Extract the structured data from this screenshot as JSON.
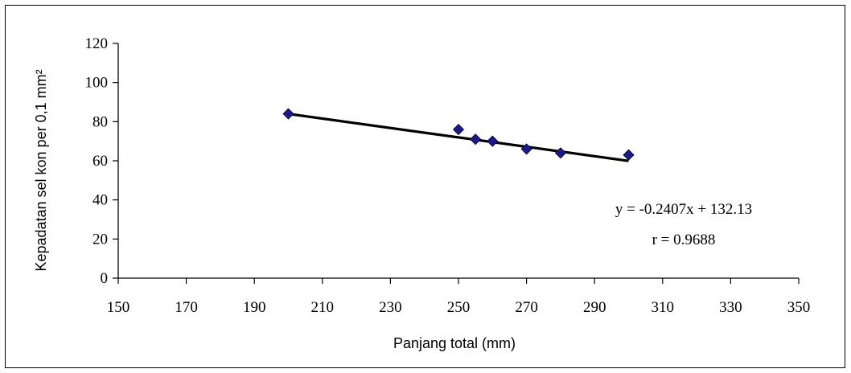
{
  "chart_data": {
    "type": "scatter",
    "title": "",
    "xlabel": "Panjang total (mm)",
    "ylabel": "Kepadatan  sel kon per 0,1 mm²",
    "xlim": [
      150,
      350
    ],
    "ylim": [
      0,
      120
    ],
    "x_ticks": [
      150,
      170,
      190,
      210,
      230,
      250,
      270,
      290,
      310,
      330,
      350
    ],
    "y_ticks": [
      0,
      20,
      40,
      60,
      80,
      100,
      120
    ],
    "grid": false,
    "marker_color": "#1a1a8c",
    "line_color": "#000000",
    "points": [
      {
        "x": 200,
        "y": 84
      },
      {
        "x": 250,
        "y": 76
      },
      {
        "x": 255,
        "y": 71
      },
      {
        "x": 260,
        "y": 70
      },
      {
        "x": 270,
        "y": 66
      },
      {
        "x": 280,
        "y": 64
      },
      {
        "x": 300,
        "y": 63
      }
    ],
    "trendline": {
      "slope": -0.2407,
      "intercept": 132.13,
      "x_range": [
        200,
        300
      ]
    },
    "annotations": {
      "equation": "y = -0.2407x + 132.13",
      "r_value": "r = 0.9688"
    }
  }
}
